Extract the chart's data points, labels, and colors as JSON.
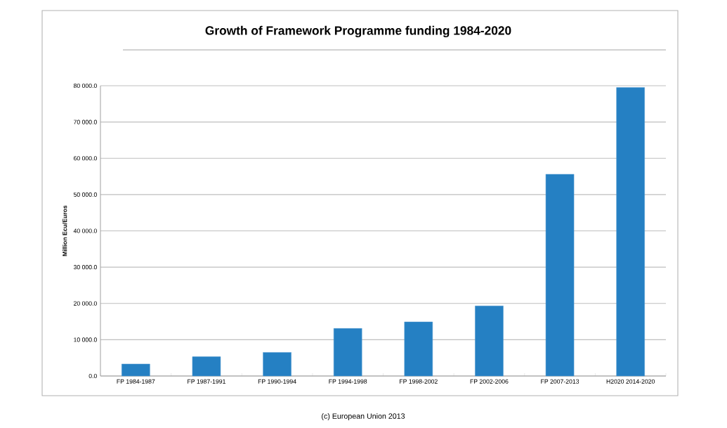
{
  "chart_data": {
    "type": "bar",
    "title": "Growth of Framework Programme funding  1984-2020",
    "ylabel": "Million Ecu/Euros",
    "categories": [
      "FP 1984-1987",
      "FP 1987-1991",
      "FP 1990-1994",
      "FP 1994-1998",
      "FP 1998-2002",
      "FP 2002-2006",
      "FP 2007-2013",
      "H2020 2014-2020"
    ],
    "values": [
      3300,
      5300,
      6500,
      13100,
      14900,
      19300,
      55600,
      79500
    ],
    "color": "#2580c3",
    "ylim": [
      0,
      80000
    ],
    "yticks": [
      {
        "value": 0,
        "label": "0.0"
      },
      {
        "value": 10000,
        "label": "10 000.0"
      },
      {
        "value": 20000,
        "label": "20 000.0"
      },
      {
        "value": 30000,
        "label": "30 000.0"
      },
      {
        "value": 40000,
        "label": "40 000.0"
      },
      {
        "value": 50000,
        "label": "50 000.0"
      },
      {
        "value": 60000,
        "label": "60 000.0"
      },
      {
        "value": 70000,
        "label": "70 000.0"
      },
      {
        "value": 80000,
        "label": "80 000.0"
      }
    ],
    "grid": "y",
    "annotations": [
      "(c) European Union 2013"
    ]
  }
}
